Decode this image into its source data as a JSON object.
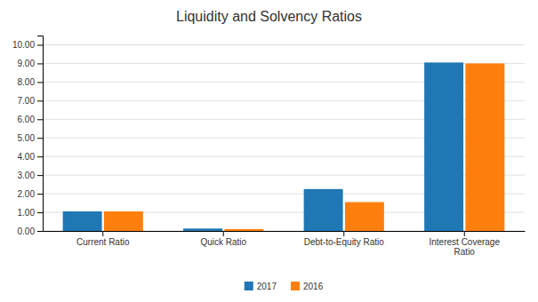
{
  "chart_data": {
    "type": "bar",
    "title": "Liquidity and Solvency Ratios",
    "categories": [
      "Current Ratio",
      "Quick Ratio",
      "Debt-to-Equity Ratio",
      "Interest Coverage\nRatio"
    ],
    "series": [
      {
        "name": "2017",
        "values": [
          1.05,
          0.13,
          2.25,
          9.05
        ]
      },
      {
        "name": "2016",
        "values": [
          1.05,
          0.1,
          1.55,
          9.0
        ]
      }
    ],
    "ylim": [
      0,
      10.5
    ],
    "yticks": [
      {
        "value": 0,
        "label": "0.00"
      },
      {
        "value": 1,
        "label": "1.00"
      },
      {
        "value": 2,
        "label": "2.00"
      },
      {
        "value": 3,
        "label": "3.00"
      },
      {
        "value": 4,
        "label": "4.00"
      },
      {
        "value": 5,
        "label": "5.00"
      },
      {
        "value": 6,
        "label": "6.00"
      },
      {
        "value": 7,
        "label": "7.00"
      },
      {
        "value": 8,
        "label": "8.00"
      },
      {
        "value": 9,
        "label": "9.00"
      },
      {
        "value": 10,
        "label": "10.00"
      }
    ],
    "grid": true,
    "legend": "bottom"
  }
}
